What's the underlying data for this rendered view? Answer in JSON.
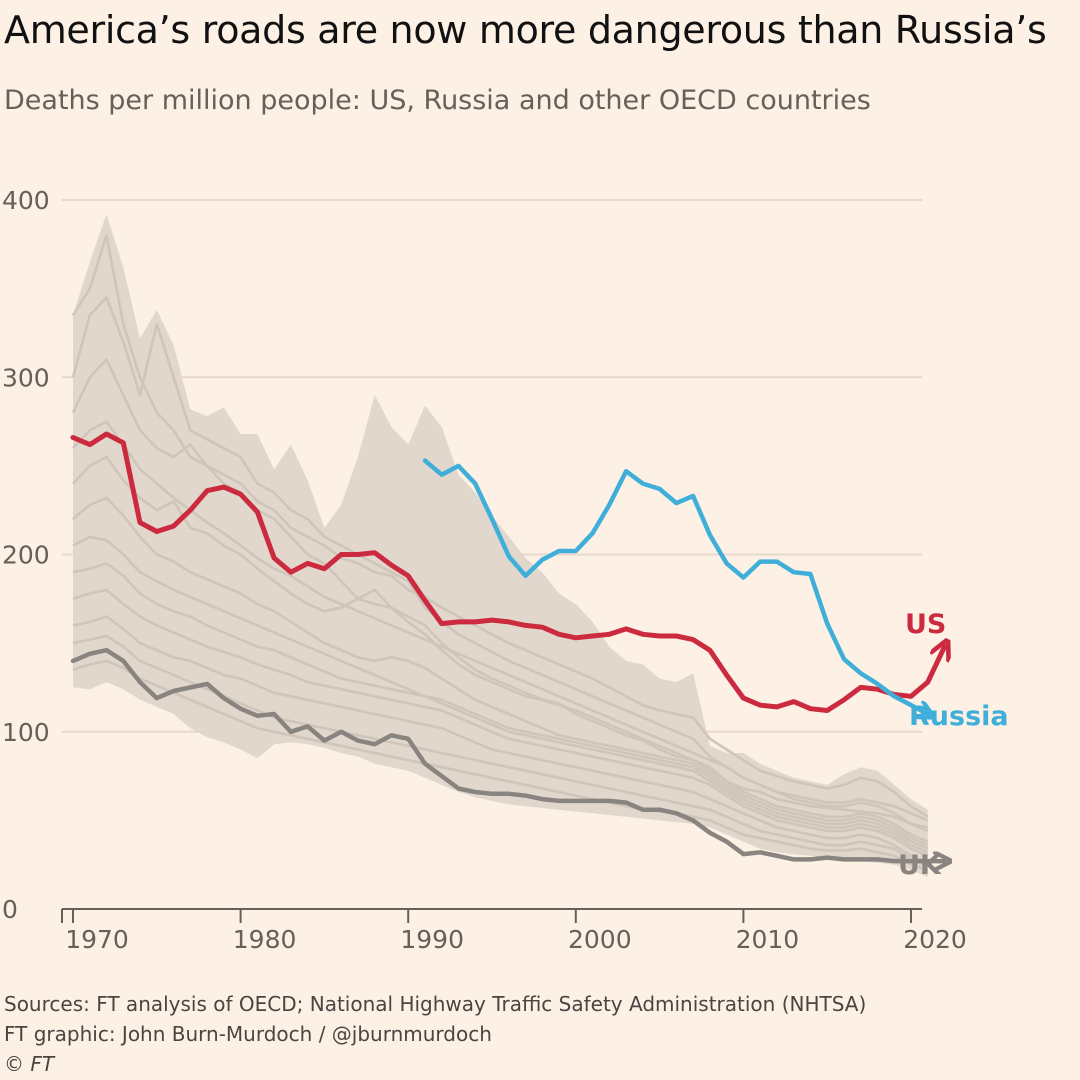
{
  "title": "America’s roads are now more dangerous than Russia’s",
  "subtitle": "Deaths per million people: US, Russia and other OECD countries",
  "footer": {
    "sources": "Sources: FT analysis of OECD; National Highway Traffic Safety Administration (NHTSA)",
    "credit": "FT graphic: John Burn-Murdoch / @jburnmurdoch",
    "copyright": "© FT"
  },
  "chart_data": {
    "type": "line",
    "xlim": [
      1969,
      2022
    ],
    "ylim": [
      0,
      400
    ],
    "x_ticks": [
      1970,
      1980,
      1990,
      2000,
      2010,
      2020
    ],
    "x_tick_labels": [
      "1970",
      "1980",
      "1990",
      "2000",
      "2010",
      "2020"
    ],
    "y_ticks": [
      0,
      100,
      200,
      300,
      400
    ],
    "y_tick_labels": [
      "0",
      "100",
      "200",
      "300",
      "400"
    ],
    "grid": "horizontal",
    "colors": {
      "background": "#FDF1E6",
      "band": "#E2D7CC",
      "oecd_line": "#CFC5BA",
      "grid": "#E9D8CB",
      "axis": "#66605a",
      "US": "#CC2A3F",
      "Russia": "#3FAFDA",
      "UK": "#8A8480"
    },
    "oecd_range": {
      "x": [
        1970,
        1971,
        1972,
        1973,
        1974,
        1975,
        1976,
        1977,
        1978,
        1979,
        1980,
        1981,
        1982,
        1983,
        1984,
        1985,
        1986,
        1987,
        1988,
        1989,
        1990,
        1991,
        1992,
        1993,
        1994,
        1995,
        1996,
        1997,
        1998,
        1999,
        2000,
        2001,
        2002,
        2003,
        2004,
        2005,
        2006,
        2007,
        2008,
        2009,
        2010,
        2011,
        2012,
        2013,
        2014,
        2015,
        2016,
        2017,
        2018,
        2019,
        2020,
        2021
      ],
      "max": [
        335,
        365,
        392,
        362,
        322,
        338,
        318,
        282,
        278,
        283,
        268,
        268,
        248,
        262,
        242,
        215,
        228,
        255,
        290,
        272,
        262,
        284,
        272,
        245,
        235,
        222,
        210,
        198,
        190,
        178,
        172,
        162,
        148,
        140,
        138,
        130,
        128,
        133,
        92,
        88,
        88,
        82,
        78,
        74,
        72,
        70,
        76,
        80,
        78,
        70,
        62,
        56
      ],
      "min": [
        125,
        124,
        128,
        124,
        118,
        114,
        110,
        102,
        97,
        94,
        90,
        85,
        93,
        94,
        93,
        91,
        88,
        86,
        82,
        80,
        78,
        74,
        70,
        66,
        63,
        61,
        59,
        58,
        57,
        56,
        55,
        54,
        53,
        52,
        51,
        50,
        49,
        48,
        46,
        42,
        38,
        34,
        32,
        31,
        30,
        29,
        28,
        27,
        26,
        25,
        22,
        18
      ]
    },
    "oecd_lines": [
      [
        335,
        350,
        380,
        330,
        300,
        280,
        270,
        255,
        250,
        240,
        235,
        225,
        220,
        210,
        200,
        195,
        185,
        175,
        172,
        170,
        165,
        160,
        150,
        142,
        135,
        130,
        126,
        122,
        118,
        116,
        110,
        106,
        102,
        98,
        95,
        90,
        86,
        84,
        80,
        72,
        68,
        66,
        62,
        60,
        58,
        57,
        56,
        55,
        54,
        52,
        48,
        46
      ],
      [
        300,
        335,
        345,
        320,
        290,
        330,
        300,
        270,
        265,
        260,
        255,
        240,
        235,
        225,
        220,
        210,
        205,
        200,
        195,
        190,
        185,
        170,
        162,
        155,
        150,
        145,
        140,
        136,
        132,
        128,
        124,
        120,
        116,
        112,
        108,
        104,
        100,
        96,
        86,
        80,
        74,
        70,
        66,
        64,
        62,
        60,
        60,
        62,
        60,
        58,
        54,
        50
      ],
      [
        280,
        300,
        310,
        290,
        270,
        260,
        255,
        262,
        250,
        245,
        240,
        230,
        225,
        215,
        210,
        205,
        198,
        195,
        190,
        188,
        180,
        176,
        170,
        165,
        160,
        155,
        150,
        146,
        142,
        138,
        134,
        130,
        125,
        120,
        115,
        112,
        110,
        108,
        96,
        90,
        84,
        78,
        75,
        72,
        70,
        68,
        70,
        74,
        72,
        66,
        58,
        52
      ],
      [
        260,
        270,
        275,
        262,
        248,
        240,
        232,
        225,
        218,
        212,
        205,
        198,
        192,
        188,
        182,
        176,
        172,
        168,
        164,
        160,
        156,
        152,
        148,
        144,
        140,
        136,
        132,
        128,
        124,
        120,
        116,
        112,
        108,
        104,
        100,
        96,
        92,
        88,
        84,
        80,
        74,
        70,
        66,
        62,
        60,
        58,
        58,
        60,
        58,
        54,
        48,
        44
      ],
      [
        240,
        250,
        255,
        242,
        232,
        225,
        230,
        215,
        212,
        205,
        200,
        192,
        185,
        178,
        172,
        168,
        170,
        175,
        180,
        170,
        162,
        155,
        146,
        138,
        132,
        128,
        124,
        120,
        118,
        115,
        112,
        108,
        104,
        100,
        96,
        92,
        88,
        84,
        78,
        72,
        66,
        62,
        58,
        56,
        54,
        52,
        52,
        54,
        52,
        48,
        42,
        38
      ],
      [
        220,
        228,
        232,
        222,
        210,
        200,
        196,
        190,
        186,
        182,
        178,
        172,
        168,
        162,
        156,
        150,
        146,
        142,
        140,
        142,
        140,
        136,
        130,
        124,
        118,
        114,
        110,
        106,
        102,
        98,
        96,
        94,
        92,
        90,
        88,
        86,
        84,
        82,
        76,
        70,
        64,
        60,
        56,
        54,
        52,
        50,
        50,
        52,
        50,
        46,
        40,
        36
      ],
      [
        205,
        210,
        208,
        200,
        190,
        185,
        180,
        176,
        172,
        168,
        164,
        160,
        156,
        152,
        148,
        144,
        140,
        136,
        132,
        128,
        124,
        120,
        116,
        112,
        108,
        104,
        100,
        98,
        96,
        94,
        92,
        90,
        88,
        86,
        84,
        82,
        80,
        78,
        72,
        66,
        60,
        56,
        52,
        50,
        48,
        46,
        46,
        48,
        46,
        42,
        36,
        32
      ],
      [
        190,
        192,
        195,
        188,
        178,
        172,
        168,
        165,
        160,
        156,
        152,
        148,
        146,
        142,
        138,
        134,
        130,
        128,
        126,
        124,
        122,
        120,
        118,
        114,
        110,
        106,
        102,
        100,
        98,
        96,
        94,
        92,
        90,
        88,
        86,
        84,
        82,
        80,
        74,
        68,
        62,
        58,
        54,
        52,
        50,
        48,
        48,
        50,
        48,
        44,
        38,
        34
      ],
      [
        175,
        178,
        180,
        172,
        165,
        160,
        156,
        152,
        148,
        145,
        142,
        138,
        135,
        132,
        128,
        126,
        124,
        122,
        120,
        118,
        116,
        114,
        112,
        108,
        104,
        100,
        96,
        94,
        92,
        90,
        88,
        86,
        84,
        82,
        80,
        78,
        76,
        74,
        70,
        64,
        58,
        54,
        50,
        48,
        46,
        44,
        44,
        46,
        44,
        40,
        34,
        30
      ],
      [
        160,
        162,
        165,
        158,
        150,
        146,
        142,
        140,
        136,
        132,
        130,
        126,
        122,
        120,
        118,
        116,
        114,
        112,
        110,
        108,
        106,
        104,
        102,
        98,
        94,
        90,
        88,
        86,
        84,
        82,
        80,
        78,
        76,
        74,
        72,
        70,
        68,
        66,
        62,
        58,
        54,
        50,
        46,
        44,
        42,
        40,
        40,
        42,
        40,
        36,
        30,
        26
      ],
      [
        150,
        152,
        154,
        148,
        140,
        136,
        132,
        128,
        124,
        120,
        116,
        112,
        108,
        106,
        104,
        102,
        100,
        98,
        96,
        94,
        92,
        90,
        88,
        86,
        84,
        82,
        80,
        78,
        76,
        74,
        72,
        70,
        68,
        66,
        64,
        62,
        60,
        58,
        56,
        52,
        48,
        44,
        42,
        40,
        38,
        36,
        36,
        38,
        36,
        34,
        28,
        24
      ],
      [
        135,
        138,
        140,
        136,
        130,
        126,
        122,
        118,
        114,
        110,
        106,
        102,
        100,
        98,
        96,
        94,
        92,
        90,
        88,
        86,
        84,
        82,
        80,
        78,
        76,
        74,
        72,
        70,
        68,
        66,
        64,
        62,
        60,
        58,
        56,
        55,
        54,
        52,
        50,
        46,
        42,
        40,
        38,
        36,
        34,
        33,
        33,
        34,
        32,
        30,
        25,
        22
      ]
    ],
    "series": [
      {
        "name": "US",
        "x": [
          1970,
          1971,
          1972,
          1973,
          1974,
          1975,
          1976,
          1977,
          1978,
          1979,
          1980,
          1981,
          1982,
          1983,
          1984,
          1985,
          1986,
          1987,
          1988,
          1989,
          1990,
          1991,
          1992,
          1993,
          1994,
          1995,
          1996,
          1997,
          1998,
          1999,
          2000,
          2001,
          2002,
          2003,
          2004,
          2005,
          2006,
          2007,
          2008,
          2009,
          2010,
          2011,
          2012,
          2013,
          2014,
          2015,
          2016,
          2017,
          2018,
          2019,
          2020,
          2021
        ],
        "y": [
          266,
          262,
          268,
          263,
          218,
          213,
          216,
          225,
          236,
          238,
          234,
          224,
          198,
          190,
          195,
          192,
          200,
          200,
          201,
          194,
          188,
          174,
          161,
          162,
          162,
          163,
          162,
          160,
          159,
          155,
          153,
          154,
          155,
          158,
          155,
          154,
          154,
          152,
          146,
          132,
          119,
          115,
          114,
          117,
          113,
          112,
          118,
          125,
          124,
          121,
          120,
          128
        ]
      },
      {
        "name": "Russia",
        "x": [
          1991,
          1992,
          1993,
          1994,
          1995,
          1996,
          1997,
          1998,
          1999,
          2000,
          2001,
          2002,
          2003,
          2004,
          2005,
          2006,
          2007,
          2008,
          2009,
          2010,
          2011,
          2012,
          2013,
          2014,
          2015,
          2016,
          2017,
          2018,
          2019
        ],
        "y": [
          253,
          245,
          250,
          240,
          220,
          199,
          188,
          197,
          202,
          202,
          212,
          228,
          247,
          240,
          237,
          229,
          233,
          211,
          195,
          187,
          196,
          196,
          190,
          189,
          161,
          141,
          133,
          127,
          120
        ]
      },
      {
        "name": "UK",
        "x": [
          1970,
          1971,
          1972,
          1973,
          1974,
          1975,
          1976,
          1977,
          1978,
          1979,
          1980,
          1981,
          1982,
          1983,
          1984,
          1985,
          1986,
          1987,
          1988,
          1989,
          1990,
          1991,
          1992,
          1993,
          1994,
          1995,
          1996,
          1997,
          1998,
          1999,
          2000,
          2001,
          2002,
          2003,
          2004,
          2005,
          2006,
          2007,
          2008,
          2009,
          2010,
          2011,
          2012,
          2013,
          2014,
          2015,
          2016,
          2017,
          2018,
          2019
        ],
        "y": [
          140,
          144,
          146,
          140,
          128,
          119,
          123,
          125,
          127,
          119,
          113,
          109,
          110,
          100,
          103,
          95,
          100,
          95,
          93,
          98,
          96,
          82,
          75,
          68,
          66,
          65,
          65,
          64,
          62,
          61,
          61,
          61,
          61,
          60,
          56,
          56,
          54,
          50,
          43,
          38,
          31,
          32,
          30,
          28,
          28,
          29,
          28,
          28,
          28,
          27
        ]
      }
    ],
    "labels": [
      {
        "series": "US",
        "text": "US"
      },
      {
        "series": "Russia",
        "text": "Russia"
      },
      {
        "series": "UK",
        "text": "UK"
      }
    ]
  }
}
